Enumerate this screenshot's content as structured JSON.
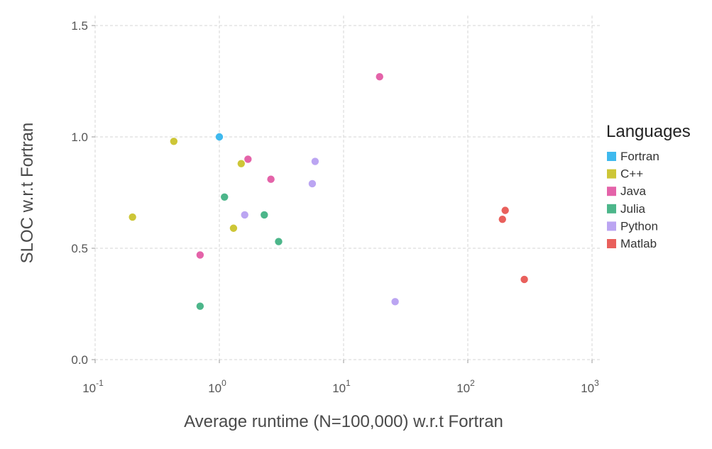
{
  "chart_data": {
    "type": "scatter",
    "xlabel": "Average runtime (N=100,000) w.r.t Fortran",
    "ylabel": "SLOC w.r.t Fortran",
    "x_scale": "log10",
    "xlim": [
      0.1,
      1000
    ],
    "ylim": [
      0,
      1.5
    ],
    "x_ticks": [
      {
        "base": "10",
        "exp": "-1"
      },
      {
        "base": "10",
        "exp": "0"
      },
      {
        "base": "10",
        "exp": "1"
      },
      {
        "base": "10",
        "exp": "2"
      },
      {
        "base": "10",
        "exp": "3"
      }
    ],
    "y_ticks": [
      "0.0",
      "0.5",
      "1.0",
      "1.5"
    ],
    "grid": true,
    "legend": {
      "title": "Languages",
      "position": "right"
    },
    "series": [
      {
        "name": "Fortran",
        "color": "#3fb9ee",
        "points": [
          [
            1.0,
            1.0
          ]
        ]
      },
      {
        "name": "C++",
        "color": "#cdc637",
        "points": [
          [
            0.2,
            0.64
          ],
          [
            0.43,
            0.98
          ],
          [
            1.5,
            0.88
          ],
          [
            1.3,
            0.59
          ]
        ]
      },
      {
        "name": "Java",
        "color": "#e463a9",
        "points": [
          [
            0.7,
            0.47
          ],
          [
            1.7,
            0.9
          ],
          [
            2.6,
            0.81
          ],
          [
            19.5,
            1.27
          ]
        ]
      },
      {
        "name": "Julia",
        "color": "#4cb68a",
        "points": [
          [
            0.7,
            0.24
          ],
          [
            1.1,
            0.73
          ],
          [
            2.3,
            0.65
          ],
          [
            3.0,
            0.53
          ]
        ]
      },
      {
        "name": "Python",
        "color": "#bba5f2",
        "points": [
          [
            1.6,
            0.65
          ],
          [
            5.6,
            0.79
          ],
          [
            5.9,
            0.89
          ],
          [
            26.0,
            0.26
          ]
        ]
      },
      {
        "name": "Matlab",
        "color": "#e9605c",
        "points": [
          [
            190,
            0.63
          ],
          [
            200,
            0.67
          ],
          [
            285,
            0.36
          ]
        ]
      }
    ]
  }
}
